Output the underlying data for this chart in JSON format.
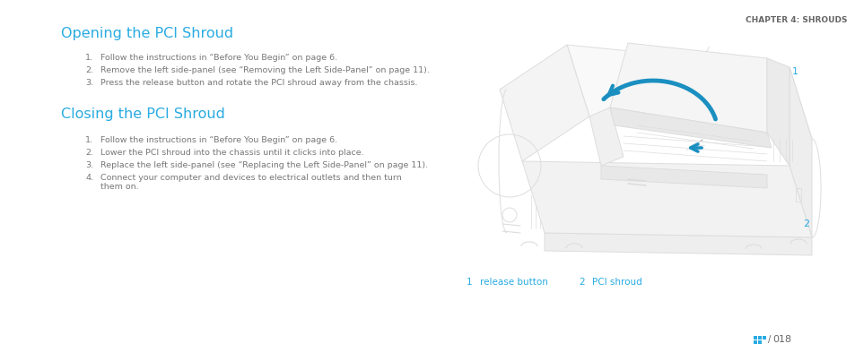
{
  "background_color": "#ffffff",
  "chapter_header": "CHAPTER 4: SHROUDS",
  "chapter_header_color": "#666666",
  "chapter_header_fontsize": 6.5,
  "title1": "Opening the PCI Shroud",
  "title1_color": "#29abe2",
  "title1_fontsize": 11.5,
  "title2": "Closing the PCI Shroud",
  "title2_color": "#29abe2",
  "title2_fontsize": 11.5,
  "opening_steps": [
    "Follow the instructions in “Before You Begin” on page 6.",
    "Remove the left side-panel (see “Removing the Left Side-Panel” on page 11).",
    "Press the release button and rotate the PCI shroud away from the chassis."
  ],
  "closing_steps": [
    "Follow the instructions in “Before You Begin” on page 6.",
    "Lower the PCI shroud into the chassis until it clicks into place.",
    "Replace the left side-panel (see “Replacing the Left Side-Panel” on page 11).",
    "Connect your computer and devices to electrical outlets and then turn\nthem on."
  ],
  "step_color": "#777777",
  "step_fontsize": 6.8,
  "label1_num": "1",
  "label1_text": "release button",
  "label2_num": "2",
  "label2_text": "PCI shroud",
  "label_color": "#29abe2",
  "label_fontsize": 7.5,
  "num_color": "#29abe2",
  "num_fontsize": 8,
  "arrow_color": "#1a8fc0",
  "line_color": "#bbbbbb",
  "chassis_color": "#dddddd",
  "page_num": "018",
  "page_num_color": "#666666",
  "page_num_fontsize": 8,
  "page_icon_color": "#29abe2"
}
